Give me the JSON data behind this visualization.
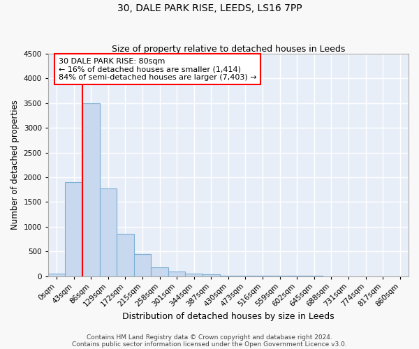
{
  "title1": "30, DALE PARK RISE, LEEDS, LS16 7PP",
  "title2": "Size of property relative to detached houses in Leeds",
  "xlabel": "Distribution of detached houses by size in Leeds",
  "ylabel": "Number of detached properties",
  "bin_labels": [
    "0sqm",
    "43sqm",
    "86sqm",
    "129sqm",
    "172sqm",
    "215sqm",
    "258sqm",
    "301sqm",
    "344sqm",
    "387sqm",
    "430sqm",
    "473sqm",
    "516sqm",
    "559sqm",
    "602sqm",
    "645sqm",
    "688sqm",
    "731sqm",
    "774sqm",
    "817sqm",
    "860sqm"
  ],
  "bar_heights": [
    50,
    1900,
    3500,
    1780,
    860,
    450,
    175,
    90,
    55,
    30,
    10,
    5,
    2,
    1,
    1,
    1,
    0,
    0,
    0,
    0,
    0
  ],
  "bar_color": "#c8d8ee",
  "bar_edge_color": "#7aafd4",
  "ylim": [
    0,
    4500
  ],
  "yticks": [
    0,
    500,
    1000,
    1500,
    2000,
    2500,
    3000,
    3500,
    4000,
    4500
  ],
  "red_line_bin_index": 2,
  "annotation_text": "30 DALE PARK RISE: 80sqm\n← 16% of detached houses are smaller (1,414)\n84% of semi-detached houses are larger (7,403) →",
  "footer1": "Contains HM Land Registry data © Crown copyright and database right 2024.",
  "footer2": "Contains public sector information licensed under the Open Government Licence v3.0.",
  "fig_bg_color": "#f8f8f8",
  "ax_bg_color": "#e8eef8",
  "grid_color": "#ffffff",
  "title1_fontsize": 10,
  "title2_fontsize": 9,
  "tick_fontsize": 7.5,
  "ylabel_fontsize": 8.5,
  "xlabel_fontsize": 9,
  "footer_fontsize": 6.5,
  "annotation_fontsize": 8
}
